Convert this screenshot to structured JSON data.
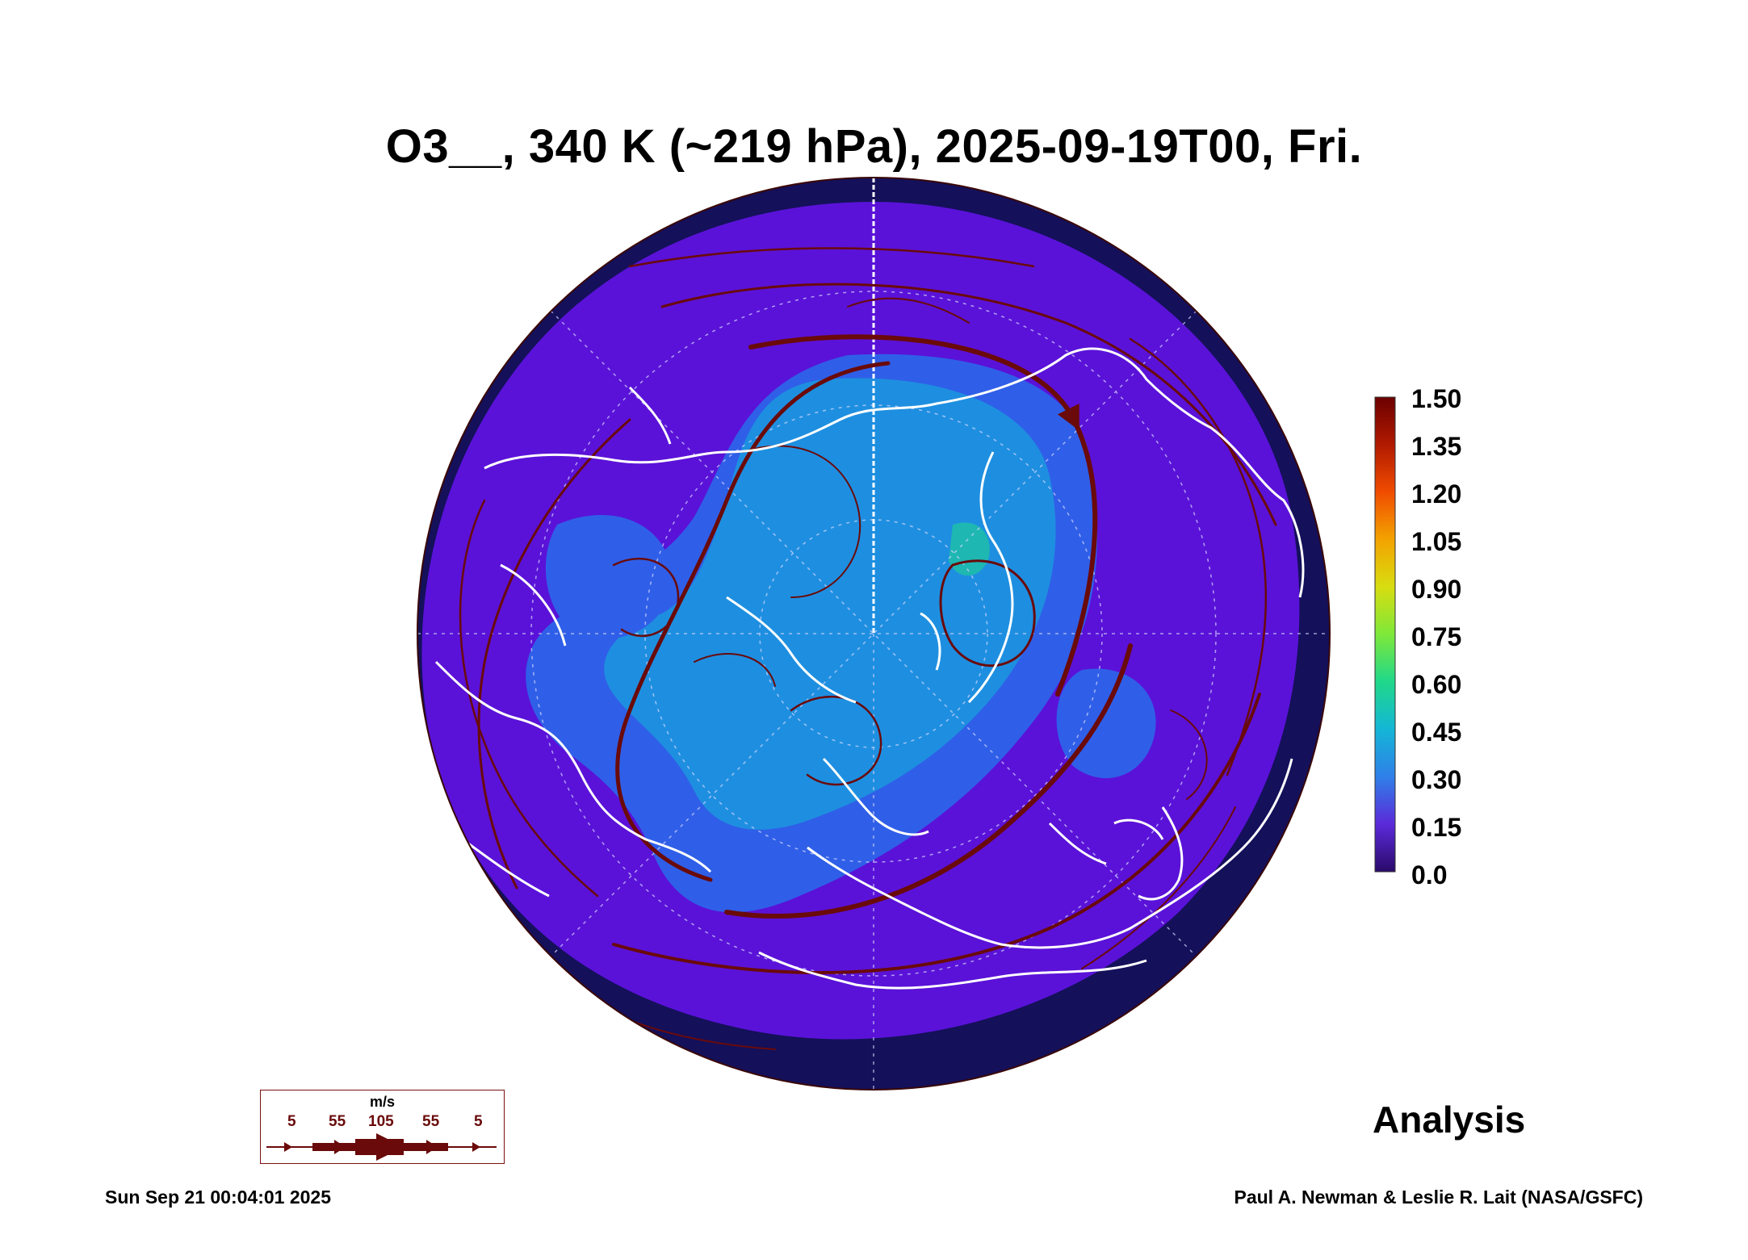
{
  "title": "O3__, 340 K (~219 hPa), 2025-09-19T00, Fri.",
  "colorbar": {
    "ticks": [
      "1.50",
      "1.35",
      "1.20",
      "1.05",
      "0.90",
      "0.75",
      "0.60",
      "0.45",
      "0.30",
      "0.15",
      "0.0"
    ],
    "colors": [
      "#6b0000",
      "#b11a00",
      "#f04c00",
      "#f3a300",
      "#d8dd10",
      "#7ee83a",
      "#1fd88a",
      "#14b6d6",
      "#2f7fe8",
      "#5b2ad9",
      "#2a0a6a"
    ]
  },
  "wind_key": {
    "unit": "m/s",
    "labels": [
      "5",
      "55",
      "105",
      "55",
      "5"
    ],
    "color": "#6a0a0a"
  },
  "map": {
    "ocean_low_color": "#14105a",
    "background_color": "#5a12d8",
    "mid_color": "#2f5fe8",
    "core_color": "#1e8fe0",
    "streamline_color": "#6a0a0a",
    "coast_color": "#ffffff"
  },
  "stamp": "Analysis",
  "footer": {
    "timestamp": "Sun Sep 21 00:04:01 2025",
    "credit": "Paul A. Newman & Leslie R. Lait (NASA/GSFC)"
  }
}
